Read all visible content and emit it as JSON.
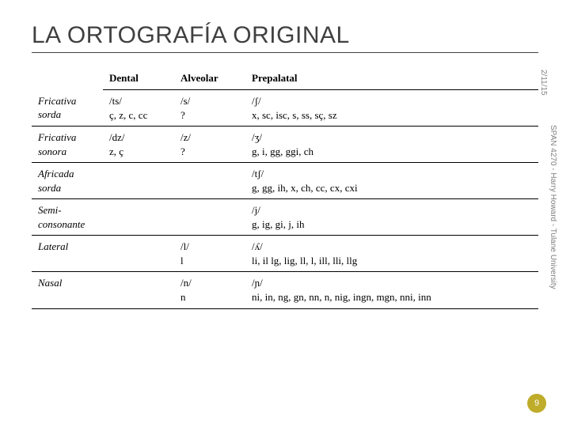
{
  "title": "LA ORTOGRAFÍA ORIGINAL",
  "date": "2/11/15",
  "course": "SPAN 4270 - Harry Howard - Tulane University",
  "page_number": "9",
  "columns": [
    "",
    "Dental",
    "Alveolar",
    "Prepalatal"
  ],
  "rows": [
    {
      "label": "Fricativa sorda",
      "dental": "/ts/\nç, z, c, cc",
      "alveolar": "/s/\n?",
      "prepalatal": "/ʃ/\nx, sc, isc, s, ss, sç, sz"
    },
    {
      "label": "Fricativa sonora",
      "dental": "/dz/\nz, ç",
      "alveolar": "/z/\n?",
      "prepalatal": "/ʒ/\ng, i, gg, ggi, ch"
    },
    {
      "label": "Africada sorda",
      "dental": "",
      "alveolar": "",
      "prepalatal": "/tʃ/\ng, gg, ih, x, ch, cc, cx, cxi"
    },
    {
      "label": "Semi-consonante",
      "dental": "",
      "alveolar": "",
      "prepalatal": "/j/\ng, ig, gi, j, ih"
    },
    {
      "label": "Lateral",
      "dental": "",
      "alveolar": "/l/\nl",
      "prepalatal": "/ʎ/\nli, il lg, lig, ll, l, ill, lli, llg"
    },
    {
      "label": "Nasal",
      "dental": "",
      "alveolar": "/n/\nn",
      "prepalatal": "/ɲ/\nni, in, ng, gn, nn, n, nig, ingn, mgn, nni, inn"
    }
  ]
}
